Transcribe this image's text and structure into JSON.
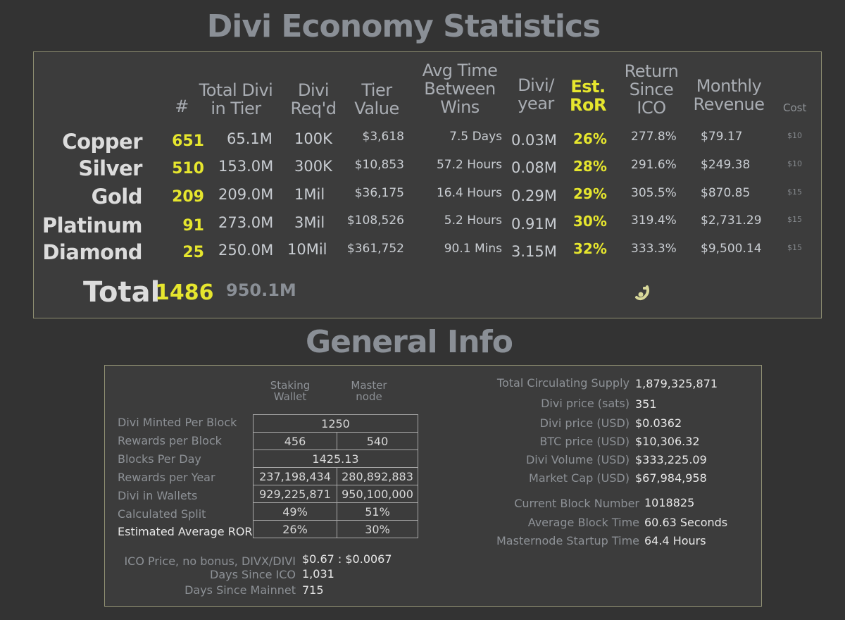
{
  "main_title": "Divi Economy Statistics",
  "headers": {
    "count": "#",
    "total_divi_1": "Total Divi",
    "total_divi_2": "in Tier",
    "divi_req_1": "Divi",
    "divi_req_2": "Req'd",
    "tier_value_1": "Tier",
    "tier_value_2": "Value",
    "avg_time_1": "Avg Time",
    "avg_time_2": "Between",
    "avg_time_3": "Wins",
    "divi_year_1": "Divi/",
    "divi_year_2": "year",
    "ror_1": "Est.",
    "ror_2": "RoR",
    "return_1": "Return",
    "return_2": "Since",
    "return_3": "ICO",
    "monthly_1": "Monthly",
    "monthly_2": "Revenue",
    "cost": "Cost"
  },
  "tiers": [
    {
      "name": "Copper",
      "count": "651",
      "total": "65.1M",
      "req": "100K",
      "value": "$3,618",
      "avg_time": "7.5 Days",
      "divi_year": "0.03M",
      "ror": "26%",
      "return": "277.8%",
      "monthly": "$79.17",
      "cost": "$10"
    },
    {
      "name": "Silver",
      "count": "510",
      "total": "153.0M",
      "req": "300K",
      "value": "$10,853",
      "avg_time": "57.2 Hours",
      "divi_year": "0.08M",
      "ror": "28%",
      "return": "291.6%",
      "monthly": "$249.38",
      "cost": "$10"
    },
    {
      "name": "Gold",
      "count": "209",
      "total": "209.0M",
      "req": "1Mil",
      "value": "$36,175",
      "avg_time": "16.4 Hours",
      "divi_year": "0.29M",
      "ror": "29%",
      "return": "305.5%",
      "monthly": "$870.85",
      "cost": "$15"
    },
    {
      "name": "Platinum",
      "count": "91",
      "total": "273.0M",
      "req": "3Mil",
      "value": "$108,526",
      "avg_time": "5.2 Hours",
      "divi_year": "0.91M",
      "ror": "30%",
      "return": "319.4%",
      "monthly": "$2,731.29",
      "cost": "$15"
    },
    {
      "name": "Diamond",
      "count": "25",
      "total": "250.0M",
      "req": "10Mil",
      "value": "$361,752",
      "avg_time": "90.1 Mins",
      "divi_year": "3.15M",
      "ror": "32%",
      "return": "333.3%",
      "monthly": "$9,500.14",
      "cost": "$15"
    }
  ],
  "total": {
    "label": "Total",
    "count": "1486",
    "divi": "950.1M"
  },
  "general_title": "General Info",
  "general": {
    "col_staking_1": "Staking",
    "col_staking_2": "Wallet",
    "col_master_1": "Master",
    "col_master_2": "node",
    "rows": [
      {
        "label": "Divi Minted Per Block",
        "merged": "1250"
      },
      {
        "label": "Rewards per Block",
        "staking": "456",
        "master": "540"
      },
      {
        "label": "Blocks Per Day",
        "merged": "1425.13"
      },
      {
        "label": "Rewards per Year",
        "staking": "237,198,434",
        "master": "280,892,883"
      },
      {
        "label": "Divi in Wallets",
        "staking": "929,225,871",
        "master": "950,100,000"
      },
      {
        "label": "Calculated Split",
        "staking": "49%",
        "master": "51%"
      },
      {
        "label": "Estimated Average ROR",
        "staking": "26%",
        "master": "30%"
      }
    ],
    "ico_price_label": "ICO Price, no bonus, DIVX/DIVI",
    "ico_price_value": "$0.67 : $0.0067",
    "days_ico_label": "Days Since ICO",
    "days_ico_value": "1,031",
    "days_mainnet_label": "Days Since Mainnet",
    "days_mainnet_value": "715",
    "right": [
      {
        "label": "Total Circulating Supply",
        "value": "1,879,325,871"
      },
      {
        "label": "Divi price (sats)",
        "value": "351"
      },
      {
        "label": "Divi price (USD)",
        "value": "$0.0362"
      },
      {
        "label": "BTC price (USD)",
        "value": "$10,306.32"
      },
      {
        "label": "Divi Volume (USD)",
        "value": "$333,225.09"
      },
      {
        "label": "Market Cap (USD)",
        "value": "$67,984,958"
      },
      {
        "label": "Current Block Number",
        "value": "1018825"
      },
      {
        "label": "Average Block Time",
        "value": "60.63 Seconds"
      },
      {
        "label": "Masternode Startup Time",
        "value": "64.4 Hours"
      }
    ]
  },
  "colors": {
    "accent_yellow": "#e6e62e",
    "background": "#333333",
    "panel_border": "#8f8f72",
    "title_gray": "#8a8f96"
  },
  "icons": {
    "logo": "divi-logo-icon"
  }
}
